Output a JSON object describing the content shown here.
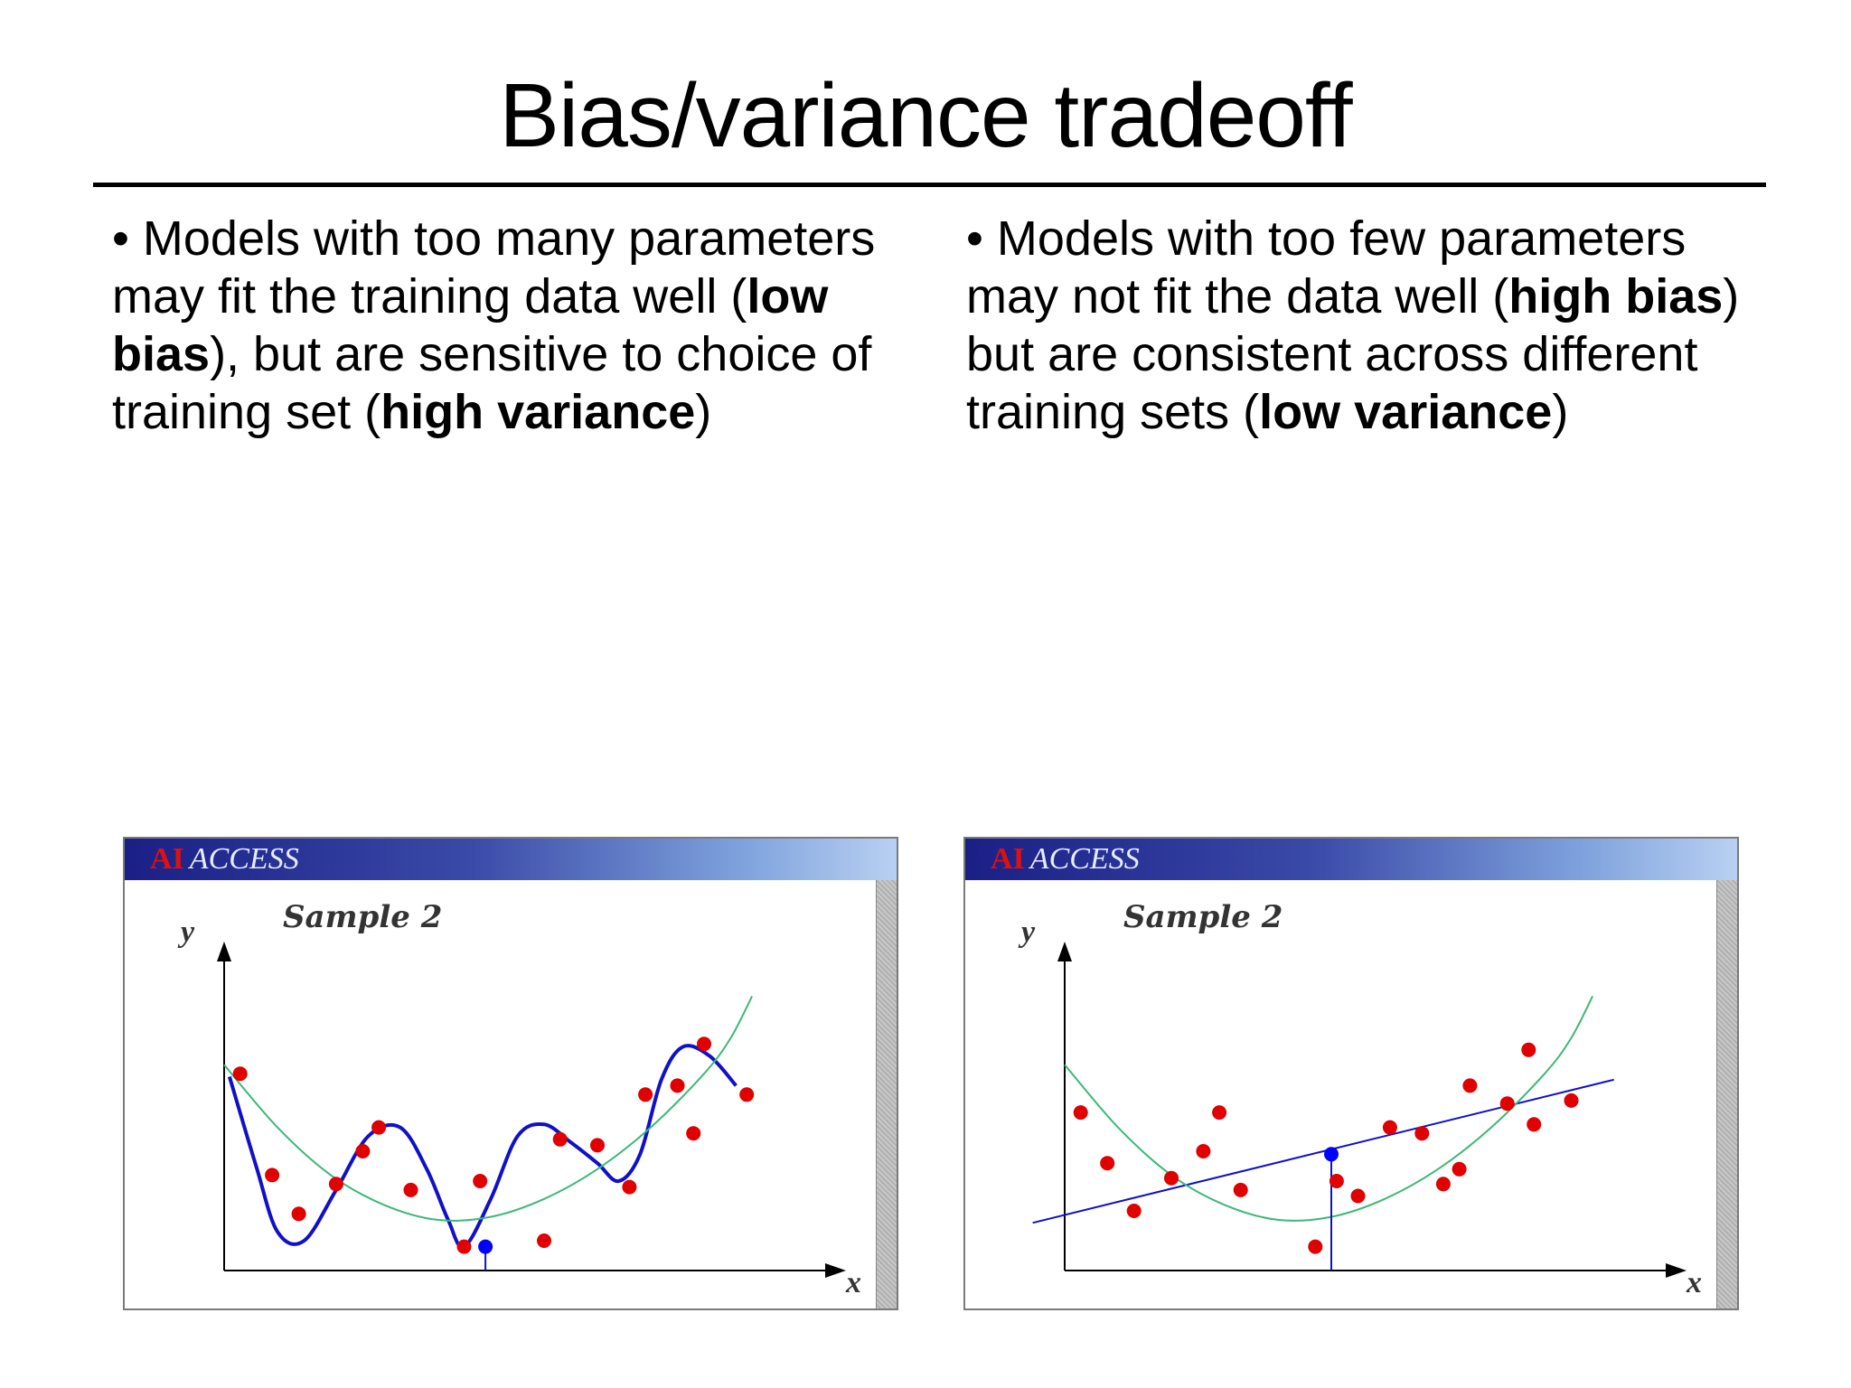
{
  "slide": {
    "title": "Bias/variance tradeoff",
    "left_bullet": [
      {
        "t": "•  Models with too many parameters may fit the training data well (",
        "b": false
      },
      {
        "t": "low bias",
        "b": true
      },
      {
        "t": "), but are sensitive to choice of training set (",
        "b": false
      },
      {
        "t": "high variance",
        "b": true
      },
      {
        "t": ")",
        "b": false
      }
    ],
    "right_bullet": [
      {
        "t": "•  Models with too few parameters may not fit the data well (",
        "b": false
      },
      {
        "t": "high bias",
        "b": true
      },
      {
        "t": ") but are consistent across different training sets (",
        "b": false
      },
      {
        "t": "low variance",
        "b": true
      },
      {
        "t": ")",
        "b": false
      }
    ]
  },
  "colors": {
    "point": "#e00000",
    "fit_curve": "#1010c8",
    "true_curve": "#3cb878",
    "highlight_point": "#0000ff",
    "axis": "#000000"
  },
  "chart_data": [
    {
      "type": "scatter",
      "window_title_prefix": "AI",
      "window_title": "ACCESS",
      "title": "Sample 2",
      "xlabel": "x",
      "ylabel": "y",
      "xlim": [
        0,
        10
      ],
      "ylim": [
        0,
        10
      ],
      "grid": false,
      "points": [
        [
          0.3,
          6.6
        ],
        [
          0.9,
          3.2
        ],
        [
          1.4,
          1.9
        ],
        [
          2.1,
          2.9
        ],
        [
          2.6,
          4.0
        ],
        [
          2.9,
          4.8
        ],
        [
          3.5,
          2.7
        ],
        [
          4.5,
          0.8
        ],
        [
          4.8,
          3.0
        ],
        [
          6.0,
          1.0
        ],
        [
          6.3,
          4.4
        ],
        [
          7.0,
          4.2
        ],
        [
          7.6,
          2.8
        ],
        [
          7.9,
          5.9
        ],
        [
          8.5,
          6.2
        ],
        [
          8.8,
          4.6
        ],
        [
          9.0,
          7.6
        ],
        [
          9.8,
          5.9
        ]
      ],
      "series": [
        {
          "kind": "overfit_curve",
          "values": [
            [
              0.1,
              6.5
            ],
            [
              0.6,
              3.5
            ],
            [
              1.0,
              1.3
            ],
            [
              1.5,
              1.0
            ],
            [
              2.1,
              2.7
            ],
            [
              2.7,
              4.5
            ],
            [
              3.3,
              4.8
            ],
            [
              3.8,
              3.4
            ],
            [
              4.2,
              1.7
            ],
            [
              4.5,
              0.8
            ],
            [
              5.0,
              2.4
            ],
            [
              5.5,
              4.5
            ],
            [
              6.0,
              4.9
            ],
            [
              6.5,
              4.3
            ],
            [
              7.0,
              3.6
            ],
            [
              7.4,
              3.0
            ],
            [
              7.8,
              3.9
            ],
            [
              8.2,
              6.4
            ],
            [
              8.6,
              7.5
            ],
            [
              9.1,
              7.2
            ],
            [
              9.6,
              6.2
            ]
          ]
        },
        {
          "kind": "true_curve",
          "values": [
            [
              0,
              6.9
            ],
            [
              1.0,
              4.8
            ],
            [
              2.0,
              3.2
            ],
            [
              3.0,
              2.2
            ],
            [
              4.0,
              1.7
            ],
            [
              5.0,
              1.8
            ],
            [
              6.0,
              2.4
            ],
            [
              7.0,
              3.4
            ],
            [
              8.0,
              4.8
            ],
            [
              9.0,
              6.6
            ],
            [
              9.5,
              7.8
            ],
            [
              9.9,
              9.2
            ]
          ]
        }
      ],
      "highlight": {
        "x": 4.9,
        "y": 0.8
      }
    },
    {
      "type": "scatter",
      "window_title_prefix": "AI",
      "window_title": "ACCESS",
      "title": "Sample 2",
      "xlabel": "x",
      "ylabel": "y",
      "xlim": [
        0,
        10
      ],
      "ylim": [
        0,
        10
      ],
      "grid": false,
      "points": [
        [
          0.3,
          5.3
        ],
        [
          0.8,
          3.6
        ],
        [
          1.3,
          2.0
        ],
        [
          2.0,
          3.1
        ],
        [
          2.6,
          4.0
        ],
        [
          2.9,
          5.3
        ],
        [
          3.3,
          2.7
        ],
        [
          4.7,
          0.8
        ],
        [
          5.1,
          3.0
        ],
        [
          5.5,
          2.5
        ],
        [
          6.1,
          4.8
        ],
        [
          6.7,
          4.6
        ],
        [
          7.1,
          2.9
        ],
        [
          7.4,
          3.4
        ],
        [
          7.6,
          6.2
        ],
        [
          8.3,
          5.6
        ],
        [
          8.7,
          7.4
        ],
        [
          8.8,
          4.9
        ],
        [
          9.5,
          5.7
        ]
      ],
      "series": [
        {
          "kind": "linear_fit",
          "values": [
            [
              -0.6,
              1.6
            ],
            [
              10.3,
              6.4
            ]
          ]
        },
        {
          "kind": "true_curve",
          "values": [
            [
              0,
              6.9
            ],
            [
              1.0,
              4.8
            ],
            [
              2.0,
              3.2
            ],
            [
              3.0,
              2.2
            ],
            [
              4.0,
              1.7
            ],
            [
              5.0,
              1.8
            ],
            [
              6.0,
              2.4
            ],
            [
              7.0,
              3.4
            ],
            [
              8.0,
              4.8
            ],
            [
              9.0,
              6.6
            ],
            [
              9.5,
              7.8
            ],
            [
              9.9,
              9.2
            ]
          ]
        }
      ],
      "highlight": {
        "x": 5.0,
        "y": 3.9
      }
    }
  ]
}
